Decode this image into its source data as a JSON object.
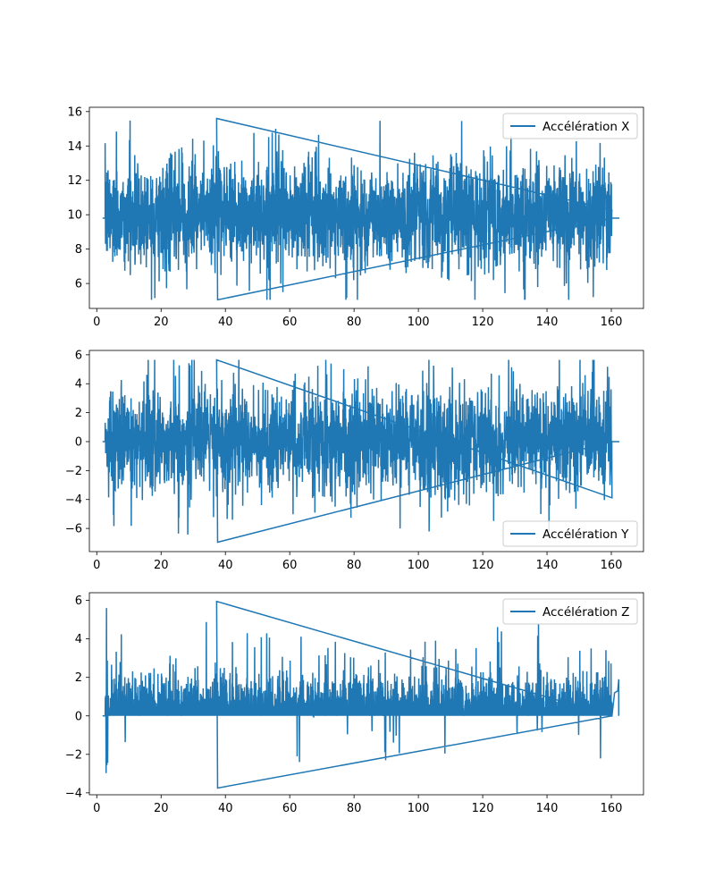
{
  "chart_data": [
    {
      "type": "line",
      "title": "",
      "xlabel": "",
      "ylabel": "",
      "xlim": [
        -2.3,
        170
      ],
      "ylim": [
        4.55,
        16.25
      ],
      "xticks": [
        0,
        20,
        40,
        60,
        80,
        100,
        120,
        140,
        160
      ],
      "yticks": [
        6,
        8,
        10,
        12,
        14,
        16
      ],
      "legend": "upper right",
      "color": "#1f77b4",
      "series": [
        {
          "name": "Accélération X",
          "x_range": [
            1.8,
            162.5
          ],
          "active_range": [
            2.6,
            160.2
          ],
          "baseline": 9.8,
          "min": 5.05,
          "max": 15.6,
          "typical_band": [
            7.0,
            13.0
          ]
        }
      ]
    },
    {
      "type": "line",
      "title": "",
      "xlabel": "",
      "ylabel": "",
      "xlim": [
        -2.3,
        170
      ],
      "ylim": [
        -7.6,
        6.3
      ],
      "xticks": [
        0,
        20,
        40,
        60,
        80,
        100,
        120,
        140,
        160
      ],
      "yticks": [
        -6,
        -4,
        -2,
        0,
        2,
        4,
        6
      ],
      "legend": "lower right",
      "color": "#1f77b4",
      "series": [
        {
          "name": "Accélération Y",
          "x_range": [
            1.8,
            162.5
          ],
          "active_range": [
            2.6,
            160.2
          ],
          "baseline": 0,
          "min": -6.95,
          "max": 5.65,
          "typical_band": [
            -3.5,
            3.5
          ]
        }
      ]
    },
    {
      "type": "line",
      "title": "",
      "xlabel": "",
      "ylabel": "",
      "xlim": [
        -2.3,
        170
      ],
      "ylim": [
        -4.1,
        6.4
      ],
      "xticks": [
        0,
        20,
        40,
        60,
        80,
        100,
        120,
        140,
        160
      ],
      "yticks": [
        -4,
        -2,
        0,
        2,
        4,
        6
      ],
      "legend": "upper right",
      "color": "#1f77b4",
      "series": [
        {
          "name": "Accélération Z",
          "x_range": [
            1.8,
            162.5
          ],
          "active_range": [
            2.6,
            160.2
          ],
          "baseline": 0,
          "min": -3.75,
          "max": 5.95,
          "typical_band": [
            0,
            3.0
          ]
        }
      ]
    }
  ]
}
